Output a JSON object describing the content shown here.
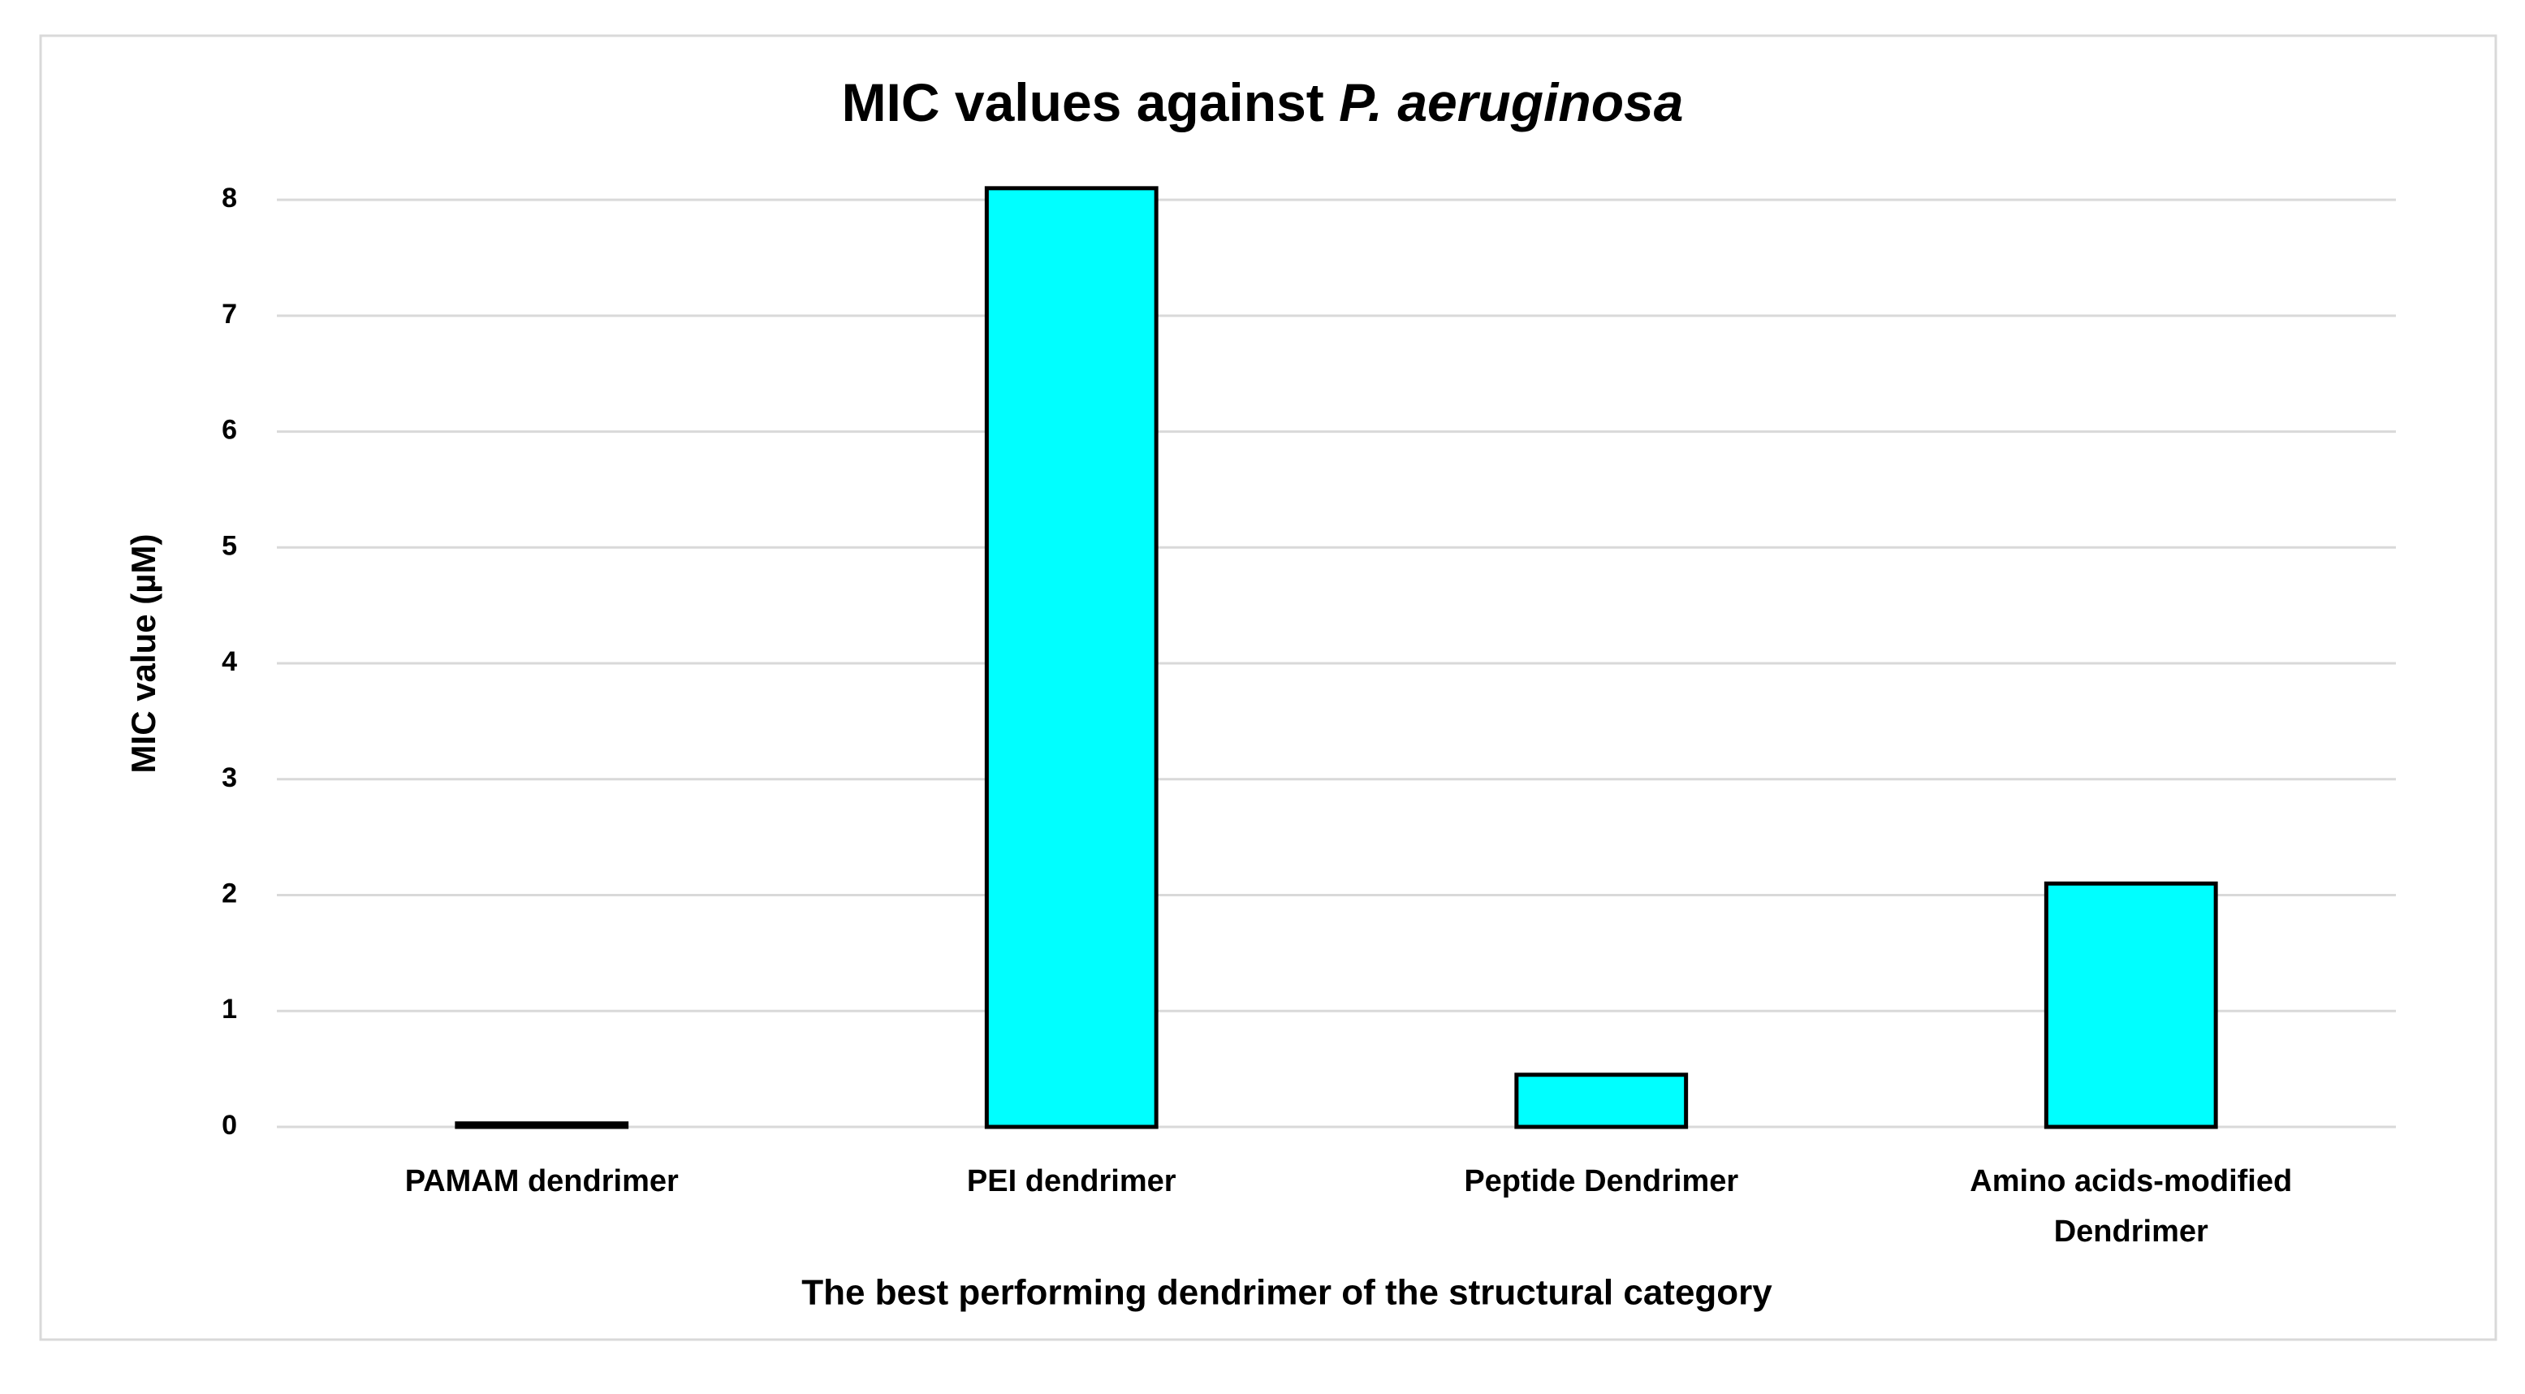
{
  "chart_data": {
    "type": "bar",
    "title": "MIC values against",
    "title_italic": "P. aeruginosa",
    "x_label": "The best performing dendrimer of the structural category",
    "y_label": "MIC value (µM)",
    "categories": [
      "PAMAM dendrimer",
      "PEI dendrimer",
      "Peptide Dendrimer",
      "Amino acids-modified Dendrimer"
    ],
    "values": [
      0.03,
      8.1,
      0.45,
      2.1
    ],
    "color": "#00ffff",
    "ylim": [
      0,
      8.4
    ],
    "yticks": [
      0,
      1,
      2,
      3,
      4,
      5,
      6,
      7,
      8
    ],
    "grid": true
  }
}
